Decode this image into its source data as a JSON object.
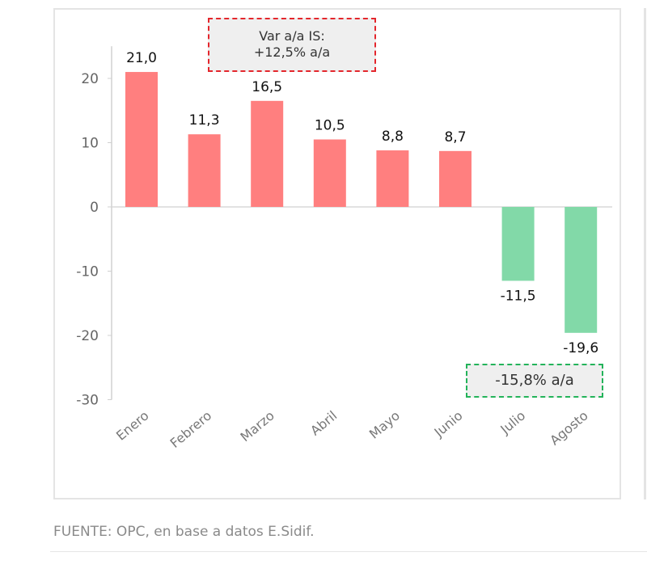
{
  "chart_data": {
    "type": "bar",
    "categories": [
      "Enero",
      "Febrero",
      "Marzo",
      "Abril",
      "Mayo",
      "Junio",
      "Julio",
      "Agosto"
    ],
    "values": [
      21.0,
      11.3,
      16.5,
      10.5,
      8.8,
      8.7,
      -11.5,
      -19.6
    ],
    "labels": [
      "21,0",
      "11,3",
      "16,5",
      "10,5",
      "8,8",
      "8,7",
      "-11,5",
      "-19,6"
    ],
    "yticks": [
      20,
      10,
      0,
      -10,
      -20,
      -30
    ],
    "ylim": [
      -30,
      25
    ],
    "colors": {
      "positive": "#ff7f7f",
      "negative": "#82d9a8"
    },
    "annotations": [
      {
        "text_line1": "Var a/a IS:",
        "text_line2": "+12,5% a/a",
        "border": "#e4262c"
      },
      {
        "text": "-15,8% a/a",
        "border": "#23b35a"
      }
    ]
  },
  "source": "FUENTE: OPC, en base a datos E.Sidif."
}
